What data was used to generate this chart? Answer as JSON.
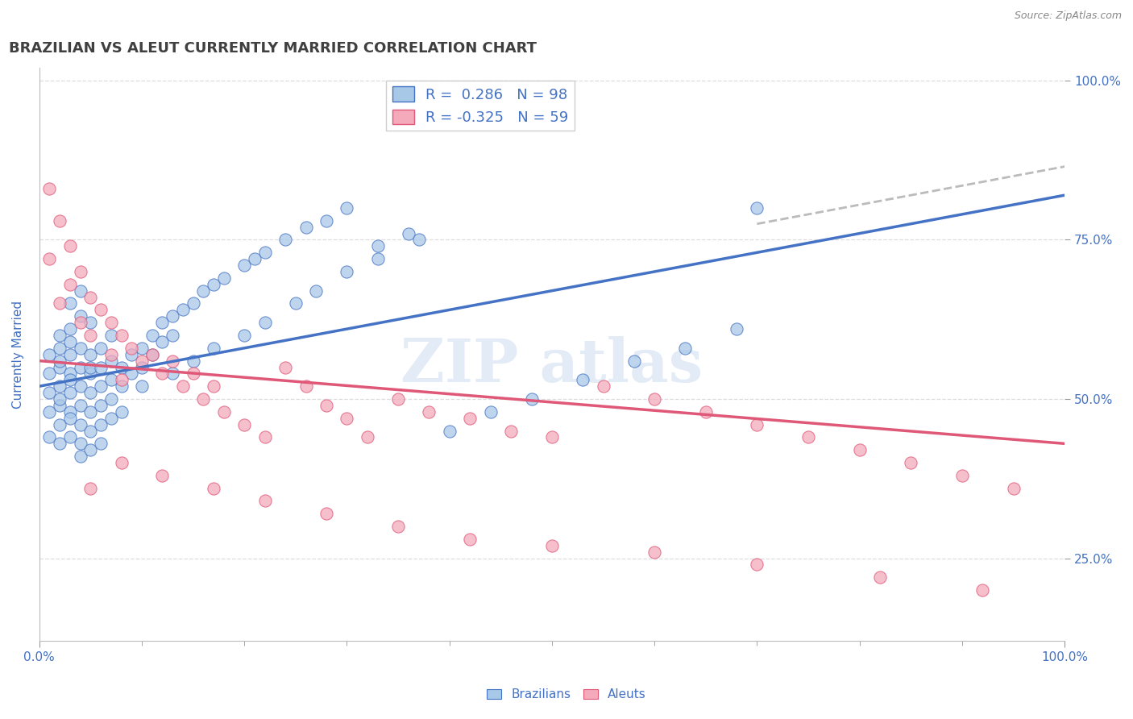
{
  "title": "BRAZILIAN VS ALEUT CURRENTLY MARRIED CORRELATION CHART",
  "source": "Source: ZipAtlas.com",
  "ylabel": "Currently Married",
  "xlim": [
    0.0,
    1.0
  ],
  "ylim": [
    0.12,
    1.02
  ],
  "x_ticks": [
    0.0,
    1.0
  ],
  "x_tick_labels": [
    "0.0%",
    "100.0%"
  ],
  "y_tick_values": [
    0.25,
    0.5,
    0.75,
    1.0
  ],
  "y_tick_labels": [
    "25.0%",
    "50.0%",
    "75.0%",
    "100.0%"
  ],
  "legend_r1": "R =  0.286",
  "legend_n1": "N = 98",
  "legend_r2": "R = -0.325",
  "legend_n2": "N = 59",
  "color_brazilian": "#A8C8E8",
  "color_aleut": "#F4AABB",
  "color_line_brazilian": "#4472C4",
  "color_line_aleut": "#E05878",
  "color_line_ext": "#BBBBBB",
  "title_color": "#404040",
  "axis_label_color": "#4472C4",
  "background_color": "#FFFFFF",
  "grid_color": "#DDDDDD",
  "brazil_line": [
    0.0,
    0.52,
    1.0,
    0.82
  ],
  "aleut_line": [
    0.0,
    0.56,
    1.0,
    0.43
  ],
  "ext_line": [
    0.7,
    0.775,
    1.0,
    0.865
  ],
  "brazilians_x": [
    0.01,
    0.01,
    0.01,
    0.01,
    0.01,
    0.02,
    0.02,
    0.02,
    0.02,
    0.02,
    0.02,
    0.02,
    0.02,
    0.02,
    0.03,
    0.03,
    0.03,
    0.03,
    0.03,
    0.03,
    0.03,
    0.03,
    0.03,
    0.03,
    0.04,
    0.04,
    0.04,
    0.04,
    0.04,
    0.04,
    0.04,
    0.04,
    0.04,
    0.05,
    0.05,
    0.05,
    0.05,
    0.05,
    0.05,
    0.05,
    0.05,
    0.06,
    0.06,
    0.06,
    0.06,
    0.06,
    0.06,
    0.07,
    0.07,
    0.07,
    0.07,
    0.07,
    0.08,
    0.08,
    0.08,
    0.09,
    0.09,
    0.1,
    0.1,
    0.1,
    0.11,
    0.11,
    0.12,
    0.12,
    0.13,
    0.13,
    0.14,
    0.15,
    0.16,
    0.17,
    0.18,
    0.2,
    0.21,
    0.22,
    0.24,
    0.26,
    0.28,
    0.3,
    0.33,
    0.36,
    0.4,
    0.44,
    0.48,
    0.53,
    0.58,
    0.63,
    0.68,
    0.7,
    0.13,
    0.15,
    0.17,
    0.2,
    0.22,
    0.25,
    0.27,
    0.3,
    0.33,
    0.37
  ],
  "brazilians_y": [
    0.54,
    0.51,
    0.48,
    0.57,
    0.44,
    0.55,
    0.52,
    0.49,
    0.46,
    0.58,
    0.43,
    0.6,
    0.56,
    0.5,
    0.54,
    0.51,
    0.48,
    0.57,
    0.44,
    0.61,
    0.53,
    0.47,
    0.65,
    0.59,
    0.55,
    0.52,
    0.49,
    0.46,
    0.58,
    0.63,
    0.43,
    0.67,
    0.41,
    0.54,
    0.51,
    0.48,
    0.57,
    0.45,
    0.62,
    0.55,
    0.42,
    0.55,
    0.52,
    0.49,
    0.46,
    0.58,
    0.43,
    0.56,
    0.53,
    0.5,
    0.47,
    0.6,
    0.55,
    0.52,
    0.48,
    0.57,
    0.54,
    0.58,
    0.55,
    0.52,
    0.6,
    0.57,
    0.62,
    0.59,
    0.63,
    0.6,
    0.64,
    0.65,
    0.67,
    0.68,
    0.69,
    0.71,
    0.72,
    0.73,
    0.75,
    0.77,
    0.78,
    0.8,
    0.74,
    0.76,
    0.45,
    0.48,
    0.5,
    0.53,
    0.56,
    0.58,
    0.61,
    0.8,
    0.54,
    0.56,
    0.58,
    0.6,
    0.62,
    0.65,
    0.67,
    0.7,
    0.72,
    0.75
  ],
  "aleuts_x": [
    0.01,
    0.01,
    0.02,
    0.02,
    0.03,
    0.03,
    0.04,
    0.04,
    0.05,
    0.05,
    0.06,
    0.07,
    0.08,
    0.08,
    0.09,
    0.1,
    0.11,
    0.12,
    0.13,
    0.14,
    0.15,
    0.16,
    0.17,
    0.18,
    0.2,
    0.22,
    0.24,
    0.26,
    0.28,
    0.3,
    0.32,
    0.35,
    0.38,
    0.42,
    0.46,
    0.5,
    0.55,
    0.6,
    0.65,
    0.7,
    0.75,
    0.8,
    0.85,
    0.9,
    0.95,
    0.05,
    0.08,
    0.12,
    0.17,
    0.22,
    0.28,
    0.35,
    0.42,
    0.5,
    0.6,
    0.7,
    0.82,
    0.92,
    0.07
  ],
  "aleuts_y": [
    0.83,
    0.72,
    0.78,
    0.65,
    0.74,
    0.68,
    0.7,
    0.62,
    0.66,
    0.6,
    0.64,
    0.62,
    0.6,
    0.53,
    0.58,
    0.56,
    0.57,
    0.54,
    0.56,
    0.52,
    0.54,
    0.5,
    0.52,
    0.48,
    0.46,
    0.44,
    0.55,
    0.52,
    0.49,
    0.47,
    0.44,
    0.5,
    0.48,
    0.47,
    0.45,
    0.44,
    0.52,
    0.5,
    0.48,
    0.46,
    0.44,
    0.42,
    0.4,
    0.38,
    0.36,
    0.36,
    0.4,
    0.38,
    0.36,
    0.34,
    0.32,
    0.3,
    0.28,
    0.27,
    0.26,
    0.24,
    0.22,
    0.2,
    0.57
  ]
}
